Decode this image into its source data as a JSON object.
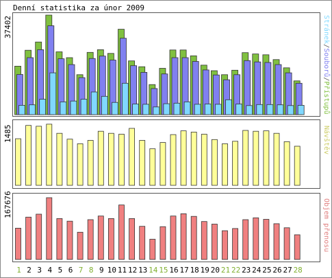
{
  "title": "Denní statistika za únor 2009",
  "colors": {
    "frame": "#555555",
    "accesses": "#80c040",
    "files": "#8080f0",
    "sites": "#80d8ff",
    "visitors": "#ffff99",
    "transfer": "#f08080",
    "weekend_label": "#80b030",
    "weekday_label": "#000000",
    "visitors_label": "#cccc66",
    "transfer_label": "#e08080"
  },
  "chart_data": [
    {
      "type": "bar",
      "title": "",
      "ylabel": "37402",
      "ymax": 37402,
      "legend": {
        "sites": "Stránek",
        "files": "Souborů",
        "accesses": "Přístupů",
        "sep": "/"
      },
      "categories": [
        "1",
        "2",
        "3",
        "4",
        "5",
        "6",
        "7",
        "8",
        "9",
        "10",
        "11",
        "12",
        "13",
        "14",
        "15",
        "16",
        "17",
        "18",
        "19",
        "20",
        "21",
        "22",
        "23",
        "24",
        "25",
        "26",
        "27",
        "28"
      ],
      "weekend": [
        1,
        7,
        8,
        14,
        15,
        21,
        22,
        28
      ],
      "series": [
        {
          "name": "Přístupů",
          "values": [
            18200,
            24200,
            27300,
            37402,
            23600,
            21400,
            15000,
            23400,
            24400,
            23000,
            32100,
            20200,
            18000,
            11300,
            17400,
            24300,
            24300,
            22100,
            18600,
            16500,
            15000,
            16700,
            23300,
            22800,
            22500,
            20700,
            17600,
            12700
          ]
        },
        {
          "name": "Souborů",
          "values": [
            15100,
            21400,
            24400,
            33400,
            21000,
            18800,
            13900,
            21100,
            22000,
            20500,
            28700,
            18400,
            15900,
            9800,
            15300,
            21400,
            21400,
            20000,
            16800,
            14900,
            13100,
            15000,
            20300,
            19800,
            19600,
            18800,
            15700,
            11800
          ]
        },
        {
          "name": "Stránek",
          "values": [
            3500,
            3700,
            5800,
            15700,
            4800,
            5100,
            5800,
            8500,
            6900,
            4600,
            11800,
            4000,
            3900,
            2900,
            4100,
            4300,
            4800,
            3900,
            4000,
            3900,
            5600,
            4000,
            3400,
            3800,
            3800,
            3700,
            3400,
            3500
          ]
        }
      ]
    },
    {
      "type": "bar",
      "title": "",
      "ylabel": "1485",
      "ymax": 1485,
      "legend": "Návštěv",
      "categories": [
        "1",
        "2",
        "3",
        "4",
        "5",
        "6",
        "7",
        "8",
        "9",
        "10",
        "11",
        "12",
        "13",
        "14",
        "15",
        "16",
        "17",
        "18",
        "19",
        "20",
        "21",
        "22",
        "23",
        "24",
        "25",
        "26",
        "27",
        "28"
      ],
      "series": [
        {
          "name": "Návštěv",
          "values": [
            1120,
            1440,
            1420,
            1470,
            1250,
            1110,
            1000,
            1080,
            1300,
            1250,
            1230,
            1370,
            1080,
            880,
            1030,
            1220,
            1310,
            1280,
            1230,
            1100,
            1000,
            1060,
            1320,
            1300,
            1310,
            1250,
            1050,
            940
          ]
        }
      ]
    },
    {
      "type": "bar",
      "title": "",
      "ylabel": "167676",
      "ymax": 167676,
      "legend": "Objem přenosu",
      "categories": [
        "1",
        "2",
        "3",
        "4",
        "5",
        "6",
        "7",
        "8",
        "9",
        "10",
        "11",
        "12",
        "13",
        "14",
        "15",
        "16",
        "17",
        "18",
        "19",
        "20",
        "21",
        "22",
        "23",
        "24",
        "25",
        "26",
        "27",
        "28"
      ],
      "series": [
        {
          "name": "Objem přenosu",
          "values": [
            85000,
            115000,
            123000,
            167676,
            111000,
            104000,
            74000,
            108000,
            118000,
            111000,
            148000,
            111000,
            90000,
            55000,
            89000,
            118000,
            124000,
            117000,
            103000,
            96000,
            78000,
            84000,
            108000,
            113000,
            109000,
            97000,
            86000,
            67000
          ]
        }
      ]
    }
  ]
}
